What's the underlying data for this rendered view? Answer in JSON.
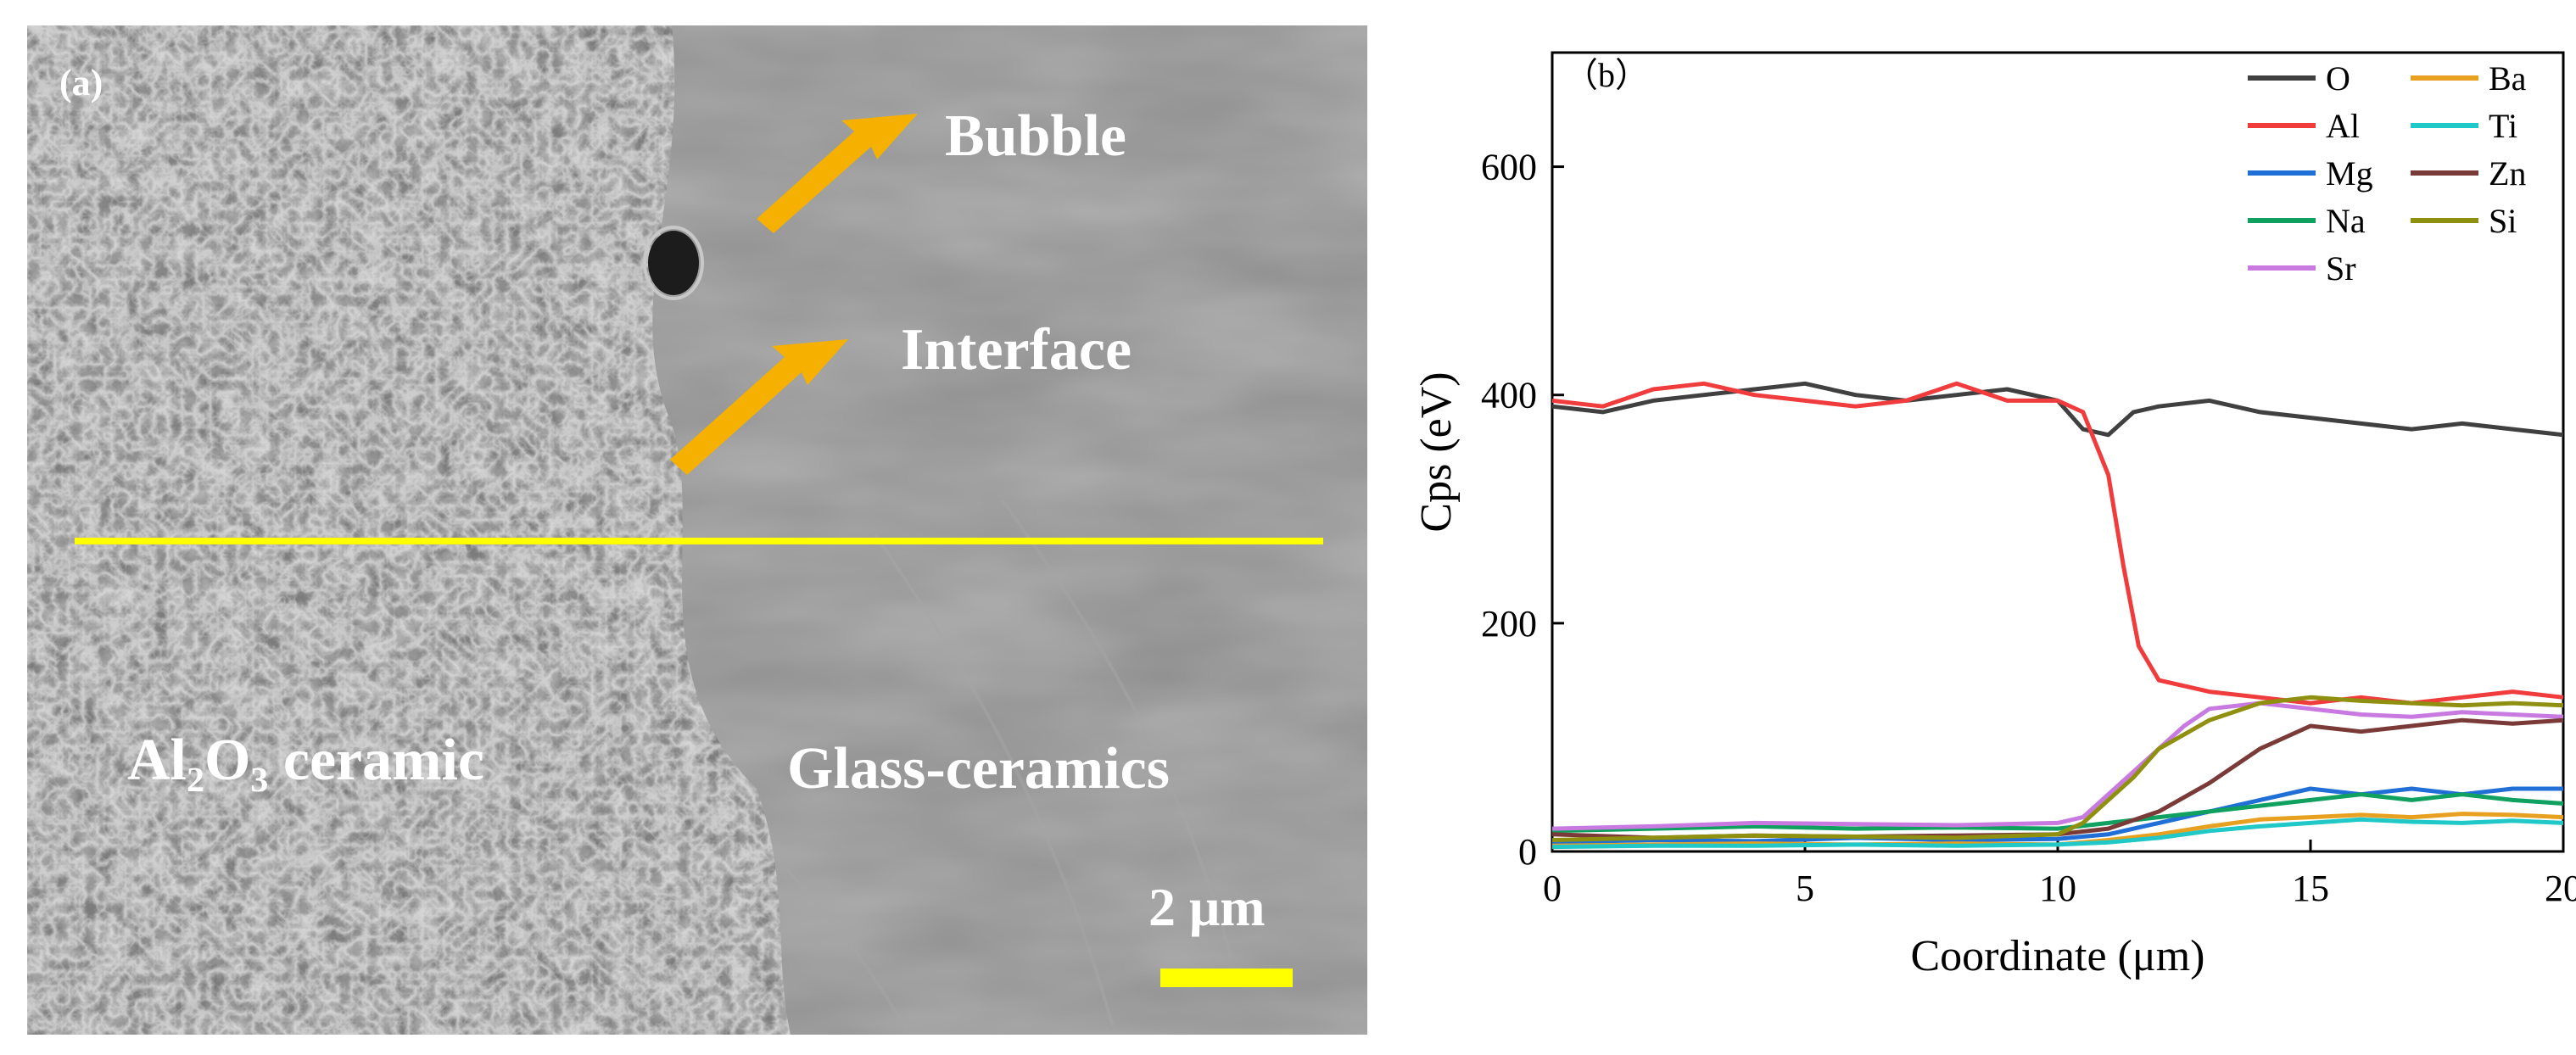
{
  "panel_a": {
    "tag": "(a)",
    "labels": {
      "bubble": "Bubble",
      "interface": "Interface",
      "alumina": "Al₂O₃ ceramic",
      "glass": "Glass-ceramics"
    },
    "scale_bar": "2 μm",
    "colors": {
      "arrow": "#f5b000",
      "scan_line": "#ffff00",
      "label": "#ffffff"
    }
  },
  "chart_data": {
    "type": "line",
    "panel_tag": "（b）",
    "xlabel": "Coordinate (μm)",
    "ylabel": "Cps (eV)",
    "xlim": [
      0,
      20
    ],
    "ylim": [
      0,
      700
    ],
    "xticks": [
      0,
      5,
      10,
      15,
      20
    ],
    "yticks": [
      0,
      200,
      400,
      600
    ],
    "legend_position": "top-right",
    "series": [
      {
        "name": "O",
        "color": "#404040",
        "x": [
          0,
          1,
          2,
          3,
          4,
          5,
          6,
          7,
          8,
          9,
          10,
          10.5,
          11,
          11.5,
          12,
          13,
          14,
          15,
          16,
          17,
          18,
          19,
          20
        ],
        "values": [
          390,
          385,
          395,
          400,
          405,
          410,
          400,
          395,
          400,
          405,
          395,
          370,
          365,
          385,
          390,
          395,
          385,
          380,
          375,
          370,
          375,
          370,
          365
        ]
      },
      {
        "name": "Al",
        "color": "#f03c3c",
        "x": [
          0,
          1,
          2,
          3,
          4,
          5,
          6,
          7,
          8,
          9,
          10,
          10.5,
          11,
          11.3,
          11.6,
          12,
          13,
          14,
          15,
          16,
          17,
          18,
          19,
          20
        ],
        "values": [
          395,
          390,
          405,
          410,
          400,
          395,
          390,
          395,
          410,
          395,
          395,
          385,
          330,
          250,
          180,
          150,
          140,
          135,
          130,
          135,
          130,
          135,
          140,
          135
        ]
      },
      {
        "name": "Mg",
        "color": "#1f6fd6",
        "x": [
          0,
          2,
          4,
          6,
          8,
          10,
          11,
          12,
          13,
          14,
          15,
          16,
          17,
          18,
          19,
          20
        ],
        "values": [
          8,
          10,
          9,
          12,
          10,
          11,
          15,
          25,
          35,
          45,
          55,
          50,
          55,
          50,
          55,
          55
        ]
      },
      {
        "name": "Na",
        "color": "#10a060",
        "x": [
          0,
          2,
          4,
          6,
          8,
          10,
          11,
          12,
          13,
          14,
          15,
          16,
          17,
          18,
          19,
          20
        ],
        "values": [
          18,
          20,
          22,
          20,
          21,
          20,
          25,
          30,
          35,
          40,
          45,
          50,
          45,
          50,
          45,
          42
        ]
      },
      {
        "name": "Sr",
        "color": "#c87ae0",
        "x": [
          0,
          2,
          4,
          6,
          8,
          10,
          10.5,
          11,
          12,
          12.5,
          13,
          14,
          15,
          16,
          17,
          18,
          19,
          20
        ],
        "values": [
          20,
          22,
          25,
          24,
          23,
          25,
          30,
          50,
          90,
          110,
          125,
          130,
          125,
          120,
          118,
          122,
          120,
          118
        ]
      },
      {
        "name": "Ba",
        "color": "#e8a020",
        "x": [
          0,
          2,
          4,
          6,
          8,
          10,
          11,
          12,
          13,
          14,
          15,
          16,
          17,
          18,
          19,
          20
        ],
        "values": [
          5,
          6,
          7,
          6,
          7,
          6,
          10,
          15,
          22,
          28,
          30,
          32,
          30,
          33,
          32,
          30
        ]
      },
      {
        "name": "Ti",
        "color": "#20c8c8",
        "x": [
          0,
          2,
          4,
          6,
          8,
          10,
          11,
          12,
          13,
          14,
          15,
          16,
          17,
          18,
          19,
          20
        ],
        "values": [
          4,
          5,
          5,
          6,
          5,
          6,
          8,
          12,
          18,
          22,
          25,
          28,
          26,
          25,
          27,
          25
        ]
      },
      {
        "name": "Zn",
        "color": "#7a3a38",
        "x": [
          0,
          2,
          4,
          6,
          8,
          10,
          11,
          12,
          13,
          14,
          15,
          16,
          17,
          18,
          19,
          20
        ],
        "values": [
          15,
          12,
          14,
          13,
          14,
          15,
          20,
          35,
          60,
          90,
          110,
          105,
          110,
          115,
          112,
          115
        ]
      },
      {
        "name": "Si",
        "color": "#909010",
        "x": [
          0,
          2,
          4,
          6,
          8,
          10,
          10.5,
          11,
          11.5,
          12,
          13,
          14,
          15,
          16,
          17,
          18,
          19,
          20
        ],
        "values": [
          10,
          12,
          14,
          13,
          12,
          15,
          25,
          45,
          65,
          90,
          115,
          130,
          135,
          132,
          130,
          128,
          130,
          128
        ]
      }
    ]
  }
}
